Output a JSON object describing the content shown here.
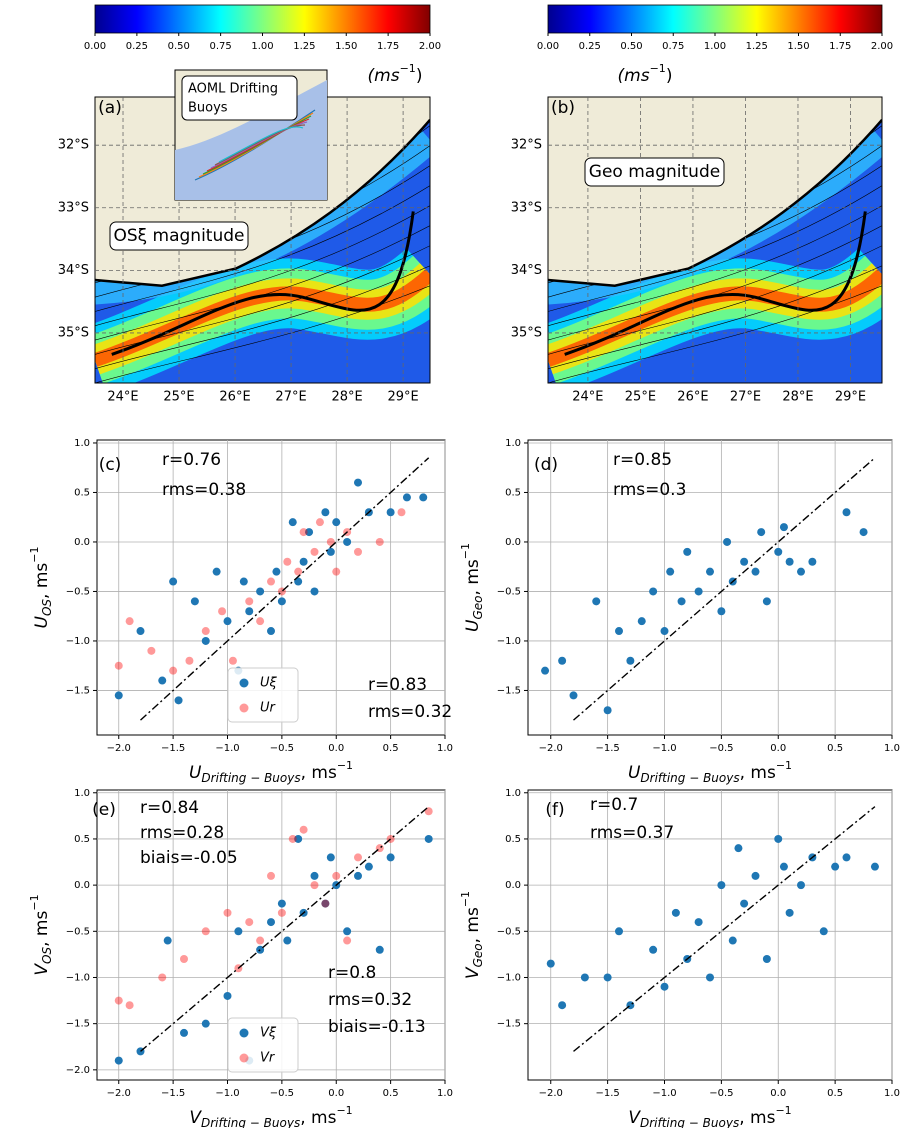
{
  "chart_data": [
    {
      "type": "map",
      "panel_label": "(a)",
      "annotation": "OSξ magnitude",
      "inset": [
        "AOML Drifting",
        "Buoys"
      ],
      "unit_label": {
        "base": "(ms",
        "sup": "−1",
        "end": ")"
      },
      "colorbar": {
        "lim": [
          0,
          2
        ],
        "ticks": [
          {
            "value": 0,
            "label": "0.00"
          },
          0.25,
          {
            "value": 0.5,
            "label": "0.50"
          },
          0.75,
          {
            "value": 1,
            "label": "1.00"
          },
          1.25,
          {
            "value": 1.5,
            "label": "1.50"
          },
          1.75,
          {
            "value": 2,
            "label": "2.00"
          }
        ]
      },
      "xlim": [
        23.5,
        29.48
      ],
      "ylim": [
        -35.8,
        -31.23
      ],
      "xticks": [
        {
          "value": 24,
          "label": "24°E"
        },
        {
          "value": 25,
          "label": "25°E"
        },
        {
          "value": 26,
          "label": "26°E"
        },
        {
          "value": 27,
          "label": "27°E"
        },
        {
          "value": 28,
          "label": "28°E"
        },
        {
          "value": 29,
          "label": "29°E"
        }
      ],
      "yticks": [
        {
          "value": -32,
          "label": "32°S"
        },
        {
          "value": -33,
          "label": "33°S"
        },
        {
          "value": -34,
          "label": "34°S"
        },
        {
          "value": -35,
          "label": "35°S"
        }
      ],
      "grid": true
    },
    {
      "type": "map",
      "panel_label": "(b)",
      "annotation": "Geo magnitude",
      "unit_label": {
        "base": "(ms",
        "sup": "−1",
        "end": ")"
      },
      "colorbar": {
        "lim": [
          0,
          2
        ],
        "ticks": [
          {
            "value": 0,
            "label": "0.00"
          },
          0.25,
          {
            "value": 0.5,
            "label": "0.50"
          },
          0.75,
          {
            "value": 1,
            "label": "1.00"
          },
          1.25,
          {
            "value": 1.5,
            "label": "1.50"
          },
          1.75,
          {
            "value": 2,
            "label": "2.00"
          }
        ]
      },
      "xlim": [
        23.24,
        29.6
      ],
      "ylim": [
        -35.8,
        -31.23
      ],
      "xticks": [
        {
          "value": 24,
          "label": "24°E"
        },
        {
          "value": 25,
          "label": "25°E"
        },
        {
          "value": 26,
          "label": "26°E"
        },
        {
          "value": 27,
          "label": "27°E"
        },
        {
          "value": 28,
          "label": "28°E"
        },
        {
          "value": 29,
          "label": "29°E"
        }
      ],
      "yticks": [
        {
          "value": -32,
          "label": "32°S"
        },
        {
          "value": -33,
          "label": "33°S"
        },
        {
          "value": -34,
          "label": "34°S"
        },
        {
          "value": -35,
          "label": "35°S"
        }
      ],
      "grid": true
    },
    {
      "type": "scatter",
      "panel_label": "(c)",
      "x_label": {
        "base": "U",
        "sub": "Drifting − Buoys",
        "unit": ", ms",
        "sup": "−1"
      },
      "y_label": {
        "base": "U",
        "sub": "OS",
        "unit": ", ms",
        "sup": "−1"
      },
      "annotations": [
        {
          "text": "r=0.76",
          "color": "#0000ff"
        },
        {
          "text": "rms=0.38",
          "color": "#0000ff"
        },
        {
          "text": "r=0.83",
          "color": "#ff0000"
        },
        {
          "text": "rms=0.32",
          "color": "#ff0000"
        }
      ],
      "xlim": [
        -2.2,
        1.0
      ],
      "ylim": [
        -1.95,
        1.03
      ],
      "xticks": [
        {
          "value": -2,
          "label": "−2.0"
        },
        {
          "value": -1.5,
          "label": "−1.5"
        },
        {
          "value": -1,
          "label": "−1.0"
        },
        {
          "value": -0.5,
          "label": "−0.5"
        },
        {
          "value": 0,
          "label": "0.0"
        },
        0.5,
        {
          "value": 1,
          "label": "1.0"
        }
      ],
      "yticks": [
        {
          "value": 1,
          "label": "1.0"
        },
        0.5,
        {
          "value": 0,
          "label": "0.0"
        },
        {
          "value": -0.5,
          "label": "−0.5"
        },
        {
          "value": -1,
          "label": "−1.0"
        },
        {
          "value": -1.5,
          "label": "−1.5"
        }
      ],
      "grid": true,
      "legend": true,
      "reference_line": {
        "x": [
          -1.8,
          0.85
        ],
        "values": [
          -1.8,
          0.85
        ]
      },
      "series": [
        {
          "name": "Uξ",
          "color": "#1f77b4",
          "alpha": 1,
          "x": [
            -2.0,
            -1.8,
            -1.6,
            -1.5,
            -1.45,
            -1.3,
            -1.2,
            -1.1,
            -1.0,
            -0.9,
            -0.85,
            -0.8,
            -0.7,
            -0.6,
            -0.55,
            -0.5,
            -0.4,
            -0.35,
            -0.3,
            -0.25,
            -0.2,
            -0.1,
            -0.05,
            0.0,
            0.1,
            0.2,
            0.3,
            0.5,
            0.65,
            0.8
          ],
          "values": [
            -1.55,
            -0.9,
            -1.4,
            -0.4,
            -1.6,
            -0.6,
            -1.0,
            -0.3,
            -0.8,
            -1.3,
            -0.4,
            -0.7,
            -0.5,
            -0.9,
            -0.3,
            -0.6,
            0.2,
            -0.4,
            -0.2,
            0.1,
            -0.5,
            0.3,
            -0.1,
            0.2,
            0.0,
            0.6,
            0.3,
            0.3,
            0.45,
            0.45
          ]
        },
        {
          "name": "Ur",
          "color": "#ff0000",
          "alpha": 0.4,
          "x": [
            -2.0,
            -1.9,
            -1.7,
            -1.5,
            -1.35,
            -1.2,
            -1.05,
            -0.95,
            -0.8,
            -0.7,
            -0.6,
            -0.5,
            -0.45,
            -0.35,
            -0.3,
            -0.2,
            -0.15,
            -0.05,
            0.0,
            0.1,
            0.2,
            0.4,
            0.6
          ],
          "values": [
            -1.25,
            -0.8,
            -1.1,
            -1.3,
            -1.2,
            -0.9,
            -0.7,
            -1.2,
            -0.6,
            -0.8,
            -0.4,
            -0.5,
            -0.2,
            -0.3,
            0.1,
            -0.1,
            0.2,
            0.0,
            -0.3,
            0.1,
            -0.1,
            0.0,
            0.3
          ]
        }
      ]
    },
    {
      "type": "scatter",
      "panel_label": "(d)",
      "x_label": {
        "base": "U",
        "sub": "Drifting − Buoys",
        "unit": ", ms",
        "sup": "−1"
      },
      "y_label": {
        "base": "U",
        "sub": "Geo",
        "unit": ",  ms",
        "sup": "−1"
      },
      "annotations": [
        {
          "text": "r=0.85",
          "color": "#000000"
        },
        {
          "text": "rms=0.3",
          "color": "#000000"
        }
      ],
      "xlim": [
        -2.2,
        1.0
      ],
      "ylim": [
        -1.95,
        1.03
      ],
      "xticks": [
        {
          "value": -2,
          "label": "−2.0"
        },
        {
          "value": -1.5,
          "label": "−1.5"
        },
        {
          "value": -1,
          "label": "−1.0"
        },
        {
          "value": -0.5,
          "label": "−0.5"
        },
        {
          "value": 0,
          "label": "0.0"
        },
        0.5,
        {
          "value": 1,
          "label": "1.0"
        }
      ],
      "yticks": [
        {
          "value": 1,
          "label": "1.0"
        },
        0.5,
        {
          "value": 0,
          "label": "0.0"
        },
        {
          "value": -0.5,
          "label": "−0.5"
        },
        {
          "value": -1,
          "label": "−1.0"
        },
        {
          "value": -1.5,
          "label": "−1.5"
        }
      ],
      "grid": true,
      "legend": false,
      "reference_line": {
        "x": [
          -1.8,
          0.85
        ],
        "values": [
          -1.8,
          0.85
        ]
      },
      "series": [
        {
          "color": "#1f77b4",
          "alpha": 1,
          "x": [
            -2.05,
            -1.9,
            -1.8,
            -1.6,
            -1.5,
            -1.4,
            -1.3,
            -1.2,
            -1.1,
            -1.0,
            -0.95,
            -0.85,
            -0.8,
            -0.7,
            -0.6,
            -0.5,
            -0.45,
            -0.4,
            -0.3,
            -0.2,
            -0.15,
            -0.1,
            0.0,
            0.05,
            0.1,
            0.2,
            0.3,
            0.6,
            0.75
          ],
          "values": [
            -1.3,
            -1.2,
            -1.55,
            -0.6,
            -1.7,
            -0.9,
            -1.2,
            -0.8,
            -0.5,
            -0.9,
            -0.3,
            -0.6,
            -0.1,
            -0.5,
            -0.3,
            -0.7,
            0.0,
            -0.4,
            -0.2,
            -0.3,
            0.1,
            -0.6,
            -0.1,
            0.15,
            -0.2,
            -0.3,
            -0.2,
            0.3,
            0.1
          ]
        }
      ]
    },
    {
      "type": "scatter",
      "panel_label": "(e)",
      "x_label": {
        "base": "V",
        "sub": "Drifting − Buoys",
        "unit": ", ms",
        "sup": "−1"
      },
      "y_label": {
        "base": "V",
        "sub": "OS",
        "unit": ",  ms",
        "sup": "−1"
      },
      "annotations": [
        {
          "text": "r=0.84",
          "color": "#0000ff"
        },
        {
          "text": "rms=0.28",
          "color": "#0000ff"
        },
        {
          "text": "biais=-0.05",
          "color": "#0000ff"
        },
        {
          "text": "r=0.8",
          "color": "#ff0000"
        },
        {
          "text": "rms=0.32",
          "color": "#ff0000"
        },
        {
          "text": "biais=-0.13",
          "color": "#ff0000"
        }
      ],
      "xlim": [
        -2.2,
        1.0
      ],
      "ylim": [
        -2.11,
        1.03
      ],
      "xticks": [
        {
          "value": -2,
          "label": "−2.0"
        },
        {
          "value": -1.5,
          "label": "−1.5"
        },
        {
          "value": -1,
          "label": "−1.0"
        },
        {
          "value": -0.5,
          "label": "−0.5"
        },
        {
          "value": 0,
          "label": "0.0"
        },
        0.5,
        {
          "value": 1,
          "label": "1.0"
        }
      ],
      "yticks": [
        {
          "value": 1,
          "label": "1.0"
        },
        0.5,
        {
          "value": 0,
          "label": "0.0"
        },
        {
          "value": -0.5,
          "label": "−0.5"
        },
        {
          "value": -1,
          "label": "−1.0"
        },
        {
          "value": -1.5,
          "label": "−1.5"
        },
        {
          "value": -2,
          "label": "−2.0"
        }
      ],
      "grid": true,
      "legend": true,
      "reference_line": {
        "x": [
          -1.8,
          0.85
        ],
        "values": [
          -1.8,
          0.85
        ]
      },
      "series": [
        {
          "name": "Vξ",
          "color": "#1f77b4",
          "alpha": 1,
          "x": [
            -2.0,
            -1.8,
            -1.55,
            -1.4,
            -1.2,
            -1.0,
            -0.9,
            -0.8,
            -0.7,
            -0.6,
            -0.5,
            -0.45,
            -0.35,
            -0.3,
            -0.2,
            -0.1,
            -0.05,
            0.0,
            0.1,
            0.2,
            0.3,
            0.4,
            0.5,
            0.85
          ],
          "values": [
            -1.9,
            -1.8,
            -0.6,
            -1.6,
            -1.5,
            -1.2,
            -0.5,
            -1.9,
            -0.7,
            -0.4,
            -0.2,
            -0.6,
            0.5,
            -0.3,
            0.1,
            -0.2,
            0.3,
            0.0,
            -0.5,
            0.1,
            0.2,
            -0.7,
            0.3,
            0.5
          ]
        },
        {
          "name": "Vr",
          "color": "#ff0000",
          "alpha": 0.4,
          "x": [
            -2.0,
            -1.9,
            -1.6,
            -1.4,
            -1.2,
            -1.0,
            -0.9,
            -0.8,
            -0.7,
            -0.6,
            -0.5,
            -0.4,
            -0.3,
            -0.2,
            -0.1,
            0.0,
            0.1,
            0.2,
            0.4,
            0.5,
            0.85
          ],
          "values": [
            -1.25,
            -1.3,
            -1.0,
            -0.8,
            -0.5,
            -0.3,
            -0.9,
            -0.4,
            -0.6,
            0.1,
            -0.3,
            0.5,
            0.6,
            0.0,
            -0.2,
            0.1,
            -0.6,
            0.3,
            0.4,
            0.5,
            0.8
          ]
        }
      ]
    },
    {
      "type": "scatter",
      "panel_label": "(f)",
      "x_label": {
        "base": "V",
        "sub": "Drifting − Buoys",
        "unit": ", ms",
        "sup": "−1"
      },
      "y_label": {
        "base": "V",
        "sub": "Geo",
        "unit": ",  ms",
        "sup": "−1"
      },
      "annotations": [
        {
          "text": "r=0.7",
          "color": "#000000"
        },
        {
          "text": "rms=0.37",
          "color": "#000000"
        }
      ],
      "xlim": [
        -2.2,
        1.0
      ],
      "ylim": [
        -2.11,
        1.03
      ],
      "xticks": [
        {
          "value": -2,
          "label": "−2.0"
        },
        {
          "value": -1.5,
          "label": "−1.5"
        },
        {
          "value": -1,
          "label": "−1.0"
        },
        {
          "value": -0.5,
          "label": "−0.5"
        },
        {
          "value": 0,
          "label": "0.0"
        },
        0.5,
        {
          "value": 1,
          "label": "1.0"
        }
      ],
      "yticks": [
        {
          "value": 1,
          "label": "1.0"
        },
        0.5,
        {
          "value": 0,
          "label": "0.0"
        },
        {
          "value": -0.5,
          "label": "−0.5"
        },
        {
          "value": -1,
          "label": "−1.0"
        },
        {
          "value": -1.5,
          "label": "−1.5"
        }
      ],
      "grid": true,
      "legend": false,
      "reference_line": {
        "x": [
          -1.8,
          0.85
        ],
        "values": [
          -1.8,
          0.85
        ]
      },
      "series": [
        {
          "color": "#1f77b4",
          "alpha": 1,
          "x": [
            -2.0,
            -1.9,
            -1.7,
            -1.5,
            -1.4,
            -1.3,
            -1.1,
            -1.0,
            -0.9,
            -0.8,
            -0.7,
            -0.6,
            -0.5,
            -0.4,
            -0.35,
            -0.3,
            -0.2,
            -0.1,
            0.0,
            0.05,
            0.1,
            0.2,
            0.3,
            0.4,
            0.5,
            0.6,
            0.85
          ],
          "values": [
            -0.85,
            -1.3,
            -1.0,
            -1.0,
            -0.5,
            -1.3,
            -0.7,
            -1.1,
            -0.3,
            -0.8,
            -0.4,
            -1.0,
            0.0,
            -0.6,
            0.4,
            -0.2,
            0.1,
            -0.8,
            0.5,
            0.2,
            -0.3,
            0.0,
            0.3,
            -0.5,
            0.2,
            0.3,
            0.2
          ]
        }
      ]
    }
  ]
}
